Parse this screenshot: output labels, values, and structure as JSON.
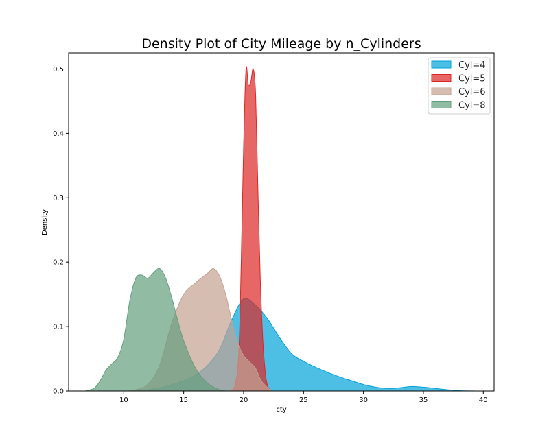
{
  "chart_data": {
    "type": "area",
    "title": "Density Plot of City Mileage by n_Cylinders",
    "xlabel": "cty",
    "ylabel": "Density",
    "xlim": [
      5.4,
      40.9
    ],
    "ylim": [
      0,
      0.525
    ],
    "xticks": [
      10,
      15,
      20,
      25,
      30,
      35,
      40
    ],
    "yticks": [
      0.0,
      0.1,
      0.2,
      0.3,
      0.4,
      0.5
    ],
    "grid": false,
    "legend_position": "top-right",
    "series": [
      {
        "name": "Cyl=4",
        "color": "#01a2d9",
        "x": [
          10.9,
          12,
          13,
          14,
          15,
          16,
          17,
          18,
          19,
          20,
          21,
          22,
          23,
          24,
          25,
          26,
          27,
          28,
          29,
          30,
          31,
          32,
          33,
          34,
          35,
          36,
          37,
          38,
          39.4
        ],
        "values": [
          0,
          0.002,
          0.005,
          0.01,
          0.016,
          0.025,
          0.04,
          0.065,
          0.11,
          0.143,
          0.133,
          0.112,
          0.083,
          0.058,
          0.046,
          0.037,
          0.029,
          0.022,
          0.016,
          0.01,
          0.006,
          0.004,
          0.005,
          0.007,
          0.006,
          0.004,
          0.002,
          0.0005,
          0
        ]
      },
      {
        "name": "Cyl=5",
        "color": "#dc2624",
        "x": [
          18.9,
          19.3,
          19.6,
          19.8,
          20.0,
          20.2,
          20.4,
          20.6,
          20.8,
          21.0,
          21.2,
          21.4,
          21.6,
          21.8,
          22.0,
          22.3
        ],
        "values": [
          0,
          0.01,
          0.06,
          0.2,
          0.38,
          0.5,
          0.475,
          0.48,
          0.5,
          0.46,
          0.31,
          0.17,
          0.08,
          0.03,
          0.008,
          0
        ]
      },
      {
        "name": "Cyl=6",
        "color": "#c3a192",
        "x": [
          10.3,
          11,
          12,
          13,
          14,
          15,
          16,
          17,
          17.5,
          18,
          18.5,
          19,
          19.5,
          20,
          20.5,
          21,
          21.5,
          22.3
        ],
        "values": [
          0,
          0.002,
          0.01,
          0.04,
          0.105,
          0.15,
          0.168,
          0.183,
          0.19,
          0.178,
          0.15,
          0.11,
          0.075,
          0.055,
          0.045,
          0.035,
          0.015,
          0
        ]
      },
      {
        "name": "Cyl=8",
        "color": "#649e7d",
        "x": [
          6.8,
          7.5,
          8,
          8.5,
          9,
          9.5,
          10,
          10.5,
          11,
          11.5,
          12,
          12.5,
          13,
          13.5,
          14,
          14.5,
          15,
          16,
          17,
          18,
          18.7
        ],
        "values": [
          0,
          0.004,
          0.015,
          0.032,
          0.042,
          0.052,
          0.08,
          0.14,
          0.175,
          0.18,
          0.175,
          0.184,
          0.19,
          0.175,
          0.145,
          0.11,
          0.078,
          0.035,
          0.012,
          0.002,
          0
        ]
      }
    ]
  }
}
